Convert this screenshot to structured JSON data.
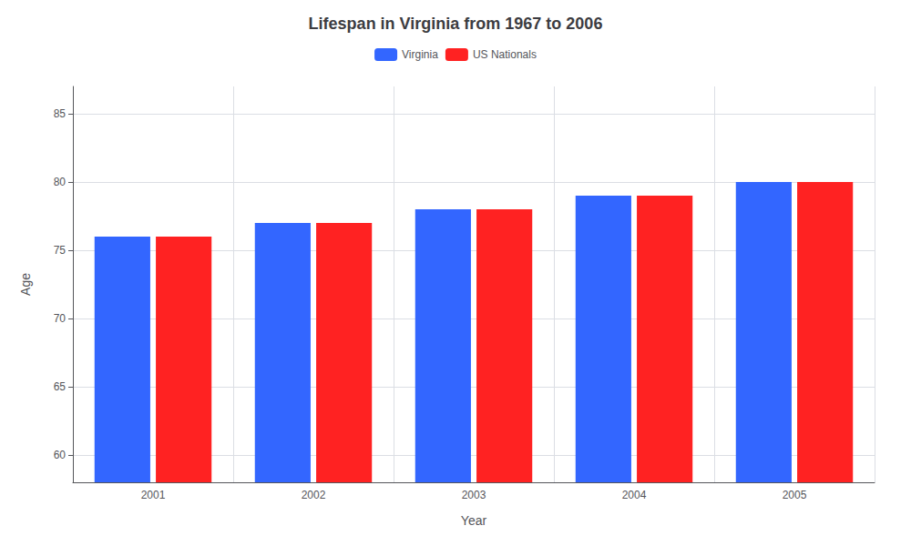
{
  "chart_data": {
    "type": "bar",
    "title": "Lifespan in Virginia from 1967 to 2006",
    "xlabel": "Year",
    "ylabel": "Age",
    "categories": [
      2001,
      2002,
      2003,
      2004,
      2005
    ],
    "series": [
      {
        "name": "Virginia",
        "color": "#3366ff",
        "values": [
          76,
          77,
          78,
          79,
          80
        ]
      },
      {
        "name": "US Nationals",
        "color": "#ff2222",
        "values": [
          76,
          77,
          78,
          79,
          80
        ]
      }
    ],
    "ylim": [
      58,
      87
    ],
    "yticks": [
      60,
      65,
      70,
      75,
      80,
      85
    ],
    "grid": true,
    "legend": "top"
  }
}
